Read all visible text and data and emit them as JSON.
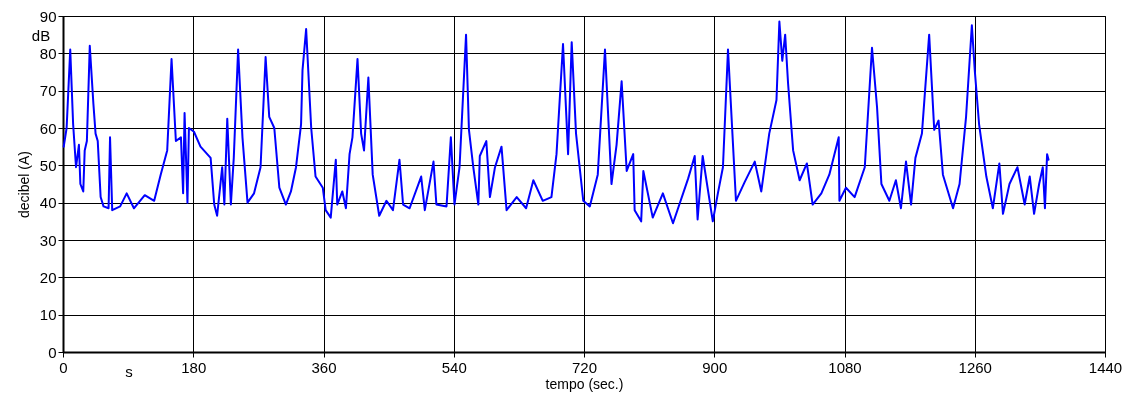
{
  "chart_data": {
    "type": "line",
    "xlabel": "tempo (sec.)",
    "ylabel": "decibel (A)",
    "annotations": [
      "dB",
      "s"
    ],
    "xlim": [
      0,
      1440
    ],
    "xticks": [
      0,
      180,
      360,
      540,
      720,
      900,
      1080,
      1260,
      1440
    ],
    "ylim": [
      0,
      90
    ],
    "yticks": [
      0,
      10,
      20,
      30,
      40,
      50,
      60,
      70,
      80,
      90
    ],
    "grid": true,
    "series": [
      {
        "color": "#0000ff",
        "x": [
          1,
          5,
          10,
          14,
          18,
          22,
          24,
          28,
          30,
          33,
          37,
          42,
          45,
          48,
          52,
          56,
          63,
          65,
          68,
          79,
          88,
          98,
          113,
          126,
          135,
          144,
          150,
          156,
          163,
          166,
          168,
          172,
          174,
          181,
          190,
          204,
          209,
          213,
          220,
          223,
          227,
          232,
          236,
          242,
          248,
          255,
          264,
          273,
          280,
          285,
          292,
          299,
          308,
          315,
          322,
          329,
          331,
          336,
          343,
          349,
          359,
          363,
          370,
          377,
          379,
          386,
          391,
          396,
          400,
          407,
          412,
          416,
          422,
          428,
          437,
          447,
          456,
          465,
          470,
          479,
          495,
          500,
          512,
          516,
          530,
          536,
          541,
          548,
          557,
          561,
          567,
          574,
          576,
          585,
          590,
          597,
          606,
          613,
          627,
          640,
          650,
          663,
          675,
          682,
          691,
          698,
          703,
          709,
          719,
          728,
          739,
          749,
          758,
          765,
          772,
          779,
          788,
          790,
          799,
          802,
          815,
          829,
          843,
          864,
          873,
          877,
          884,
          898,
          905,
          912,
          919,
          930,
          942,
          956,
          965,
          976,
          986,
          990,
          994,
          998,
          1002,
          1009,
          1018,
          1028,
          1036,
          1048,
          1059,
          1072,
          1073,
          1082,
          1094,
          1108,
          1118,
          1125,
          1131,
          1142,
          1151,
          1158,
          1165,
          1172,
          1178,
          1187,
          1197,
          1204,
          1210,
          1216,
          1230,
          1239,
          1248,
          1256,
          1260,
          1266,
          1276,
          1285,
          1294,
          1299,
          1308,
          1319,
          1329,
          1336,
          1342,
          1349,
          1354,
          1357,
          1360,
          1362
        ],
        "values": [
          55,
          60,
          81,
          61,
          49.5,
          55.5,
          45,
          43,
          54,
          56.5,
          82,
          66.5,
          58.5,
          56.5,
          41.5,
          39,
          38.5,
          57.5,
          38,
          39,
          42.5,
          38.5,
          42,
          40.5,
          47.5,
          54,
          78.5,
          56.5,
          57.5,
          42.5,
          64,
          40,
          60,
          59,
          55,
          52,
          39.5,
          36.5,
          49.5,
          39.5,
          62.5,
          39.5,
          52,
          81,
          57.5,
          40,
          42.5,
          49.5,
          79,
          63,
          60,
          44,
          39.5,
          43,
          49.5,
          61,
          75.5,
          86.5,
          60,
          47,
          44,
          38,
          36,
          51.5,
          39.5,
          43,
          38.5,
          53,
          57.5,
          78.5,
          58.5,
          54,
          73.5,
          47.5,
          36.5,
          40.5,
          38,
          51.5,
          39.5,
          38.5,
          47,
          38,
          51,
          39.5,
          39,
          57.5,
          39.5,
          49.5,
          85,
          59.5,
          49.5,
          39.5,
          52.5,
          56.5,
          41.5,
          49.5,
          55,
          38,
          41.5,
          38.5,
          46,
          40.5,
          41.5,
          53,
          82.5,
          53,
          83,
          58.5,
          40.5,
          39,
          47.5,
          81,
          45,
          55.5,
          72.5,
          48.5,
          53,
          38,
          35,
          48.5,
          36,
          42.5,
          34.5,
          46.5,
          52.5,
          35.5,
          52.5,
          35,
          42.5,
          49.5,
          81,
          40.5,
          45.5,
          51,
          43,
          58.5,
          67.5,
          88.5,
          78,
          85,
          72,
          54,
          46,
          50.5,
          39.5,
          42.5,
          47.5,
          57.5,
          40.5,
          44,
          41.5,
          49.5,
          81.5,
          65.5,
          45,
          40.5,
          46,
          38.5,
          51,
          39.5,
          52,
          58.5,
          85,
          59.5,
          62,
          47.5,
          38.5,
          45,
          63,
          87.5,
          75.5,
          61,
          47,
          38.5,
          50.5,
          37,
          45,
          49.5,
          39.5,
          47,
          37,
          45,
          49.5,
          38.5,
          53,
          51.5
        ]
      }
    ]
  }
}
